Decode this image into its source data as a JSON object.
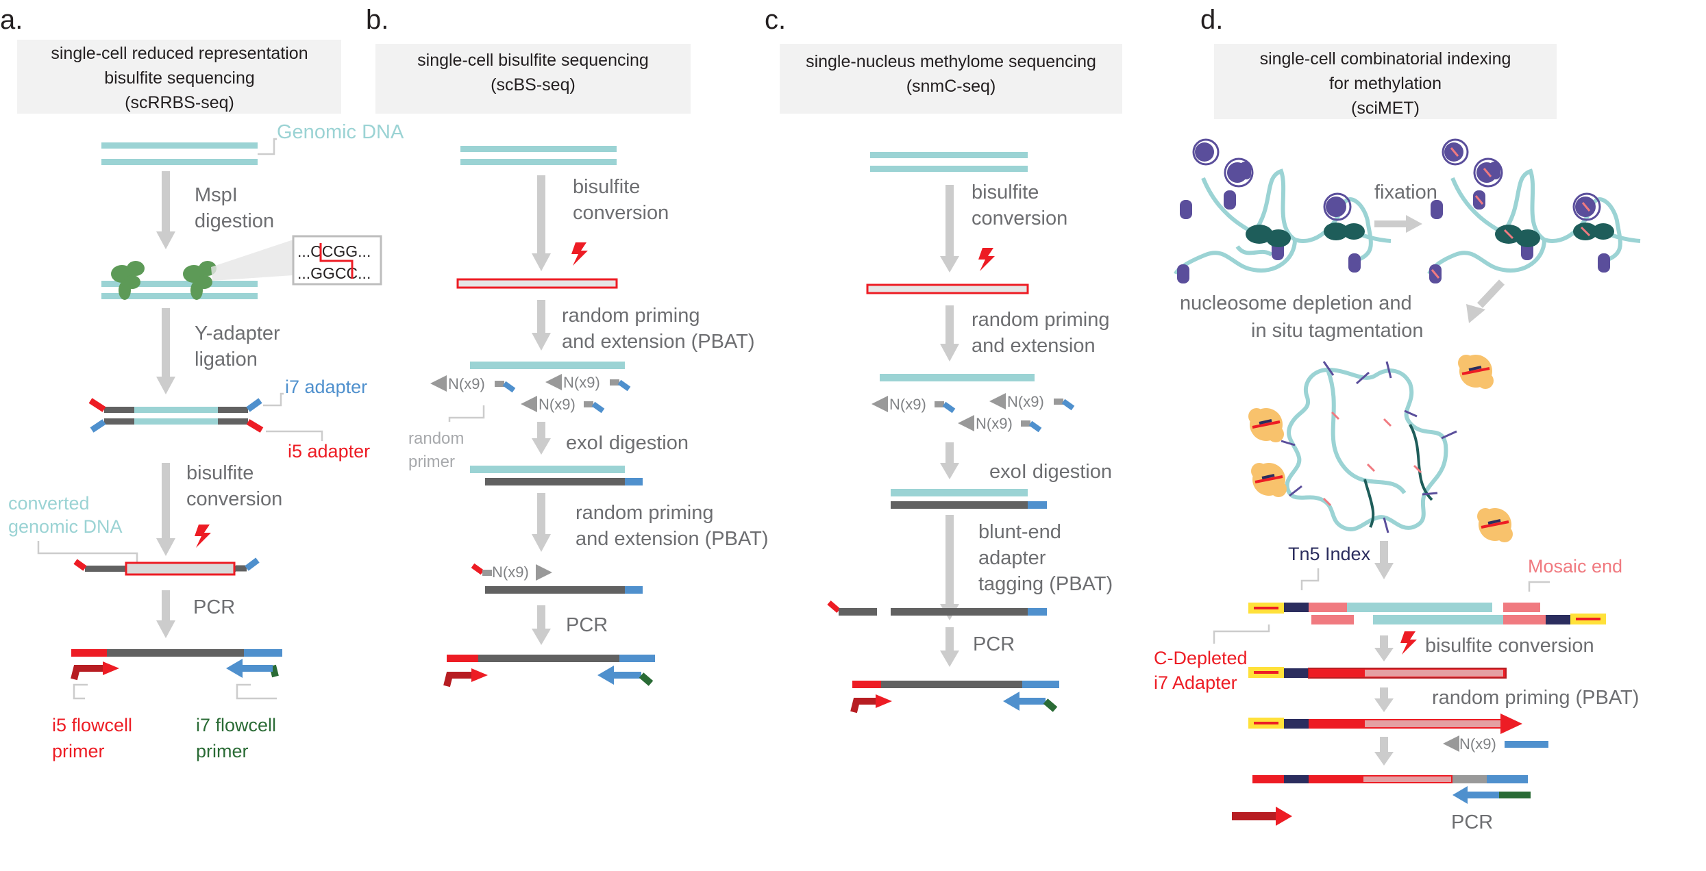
{
  "colors": {
    "dna_teal": "#9bd3d4",
    "dna_dark": "#616161",
    "red": "#ed1c24",
    "blue": "#4f90cd",
    "green": "#2a6b35",
    "arrow_gray": "#cccccc",
    "panel_bg": "#f2f2f2",
    "yellow": "#ffe13a",
    "navy": "#2b2d5e",
    "pink": "#f07a80",
    "nucleosome": "#5a4e9b",
    "enzyme_green": "#5d9a57",
    "tn5_orange": "#f8c26c"
  },
  "panels": [
    {
      "letter": "a.",
      "title": [
        "single-cell reduced representation",
        "bisulfite sequencing",
        "(scRRBS-seq)"
      ],
      "labels": {
        "genomic_dna": "Genomic DNA",
        "step1": [
          "MspI",
          "digestion"
        ],
        "step2": [
          "Y-adapter",
          "ligation"
        ],
        "i7_adapter": "i7 adapter",
        "i5_adapter": "i5 adapter",
        "step3": [
          "bisulfite",
          "conversion"
        ],
        "converted": [
          "converted",
          "genomic DNA"
        ],
        "pcr": "PCR",
        "i5_flowcell": [
          "i5 flowcell",
          "primer"
        ],
        "i7_flowcell": [
          "i7 flowcell",
          "primer"
        ],
        "seq_top": "...CCGG...",
        "seq_bottom": "...GGCC..."
      }
    },
    {
      "letter": "b.",
      "title": [
        "single-cell bisulfite sequencing",
        "(scBS-seq)"
      ],
      "labels": {
        "step1": [
          "bisulfite",
          "conversion"
        ],
        "step2": [
          "random priming",
          "and extension (PBAT)"
        ],
        "nx": "N(x9)",
        "random_primer": [
          "random",
          "primer"
        ],
        "step3": "exoI digestion",
        "step4": [
          "random priming",
          "and extension (PBAT)"
        ],
        "pcr": "PCR"
      }
    },
    {
      "letter": "c.",
      "title": [
        "single-nucleus methylome sequencing",
        "(snmC-seq)"
      ],
      "labels": {
        "step1": [
          "bisulfite",
          "conversion"
        ],
        "step2": [
          "random priming",
          "and extension"
        ],
        "nx": "N(x9)",
        "step3": "exoI digestion",
        "step4": [
          "blunt-end",
          "adapter",
          "tagging (PBAT)"
        ],
        "pcr": "PCR"
      }
    },
    {
      "letter": "d.",
      "title": [
        "single-cell combinatorial indexing",
        "for methylation",
        "(sciMET)"
      ],
      "labels": {
        "fixation": "fixation",
        "step2": [
          "nucleosome depletion and",
          "in situ tagmentation"
        ],
        "tn5_index": "Tn5 Index",
        "mosaic_end": "Mosaic end",
        "bisulfite": "bisulfite conversion",
        "cdepleted": [
          "C-Depleted",
          "i7 Adapter"
        ],
        "random_priming": "random priming (PBAT)",
        "nx": "N(x9)",
        "pcr": "PCR"
      }
    }
  ]
}
